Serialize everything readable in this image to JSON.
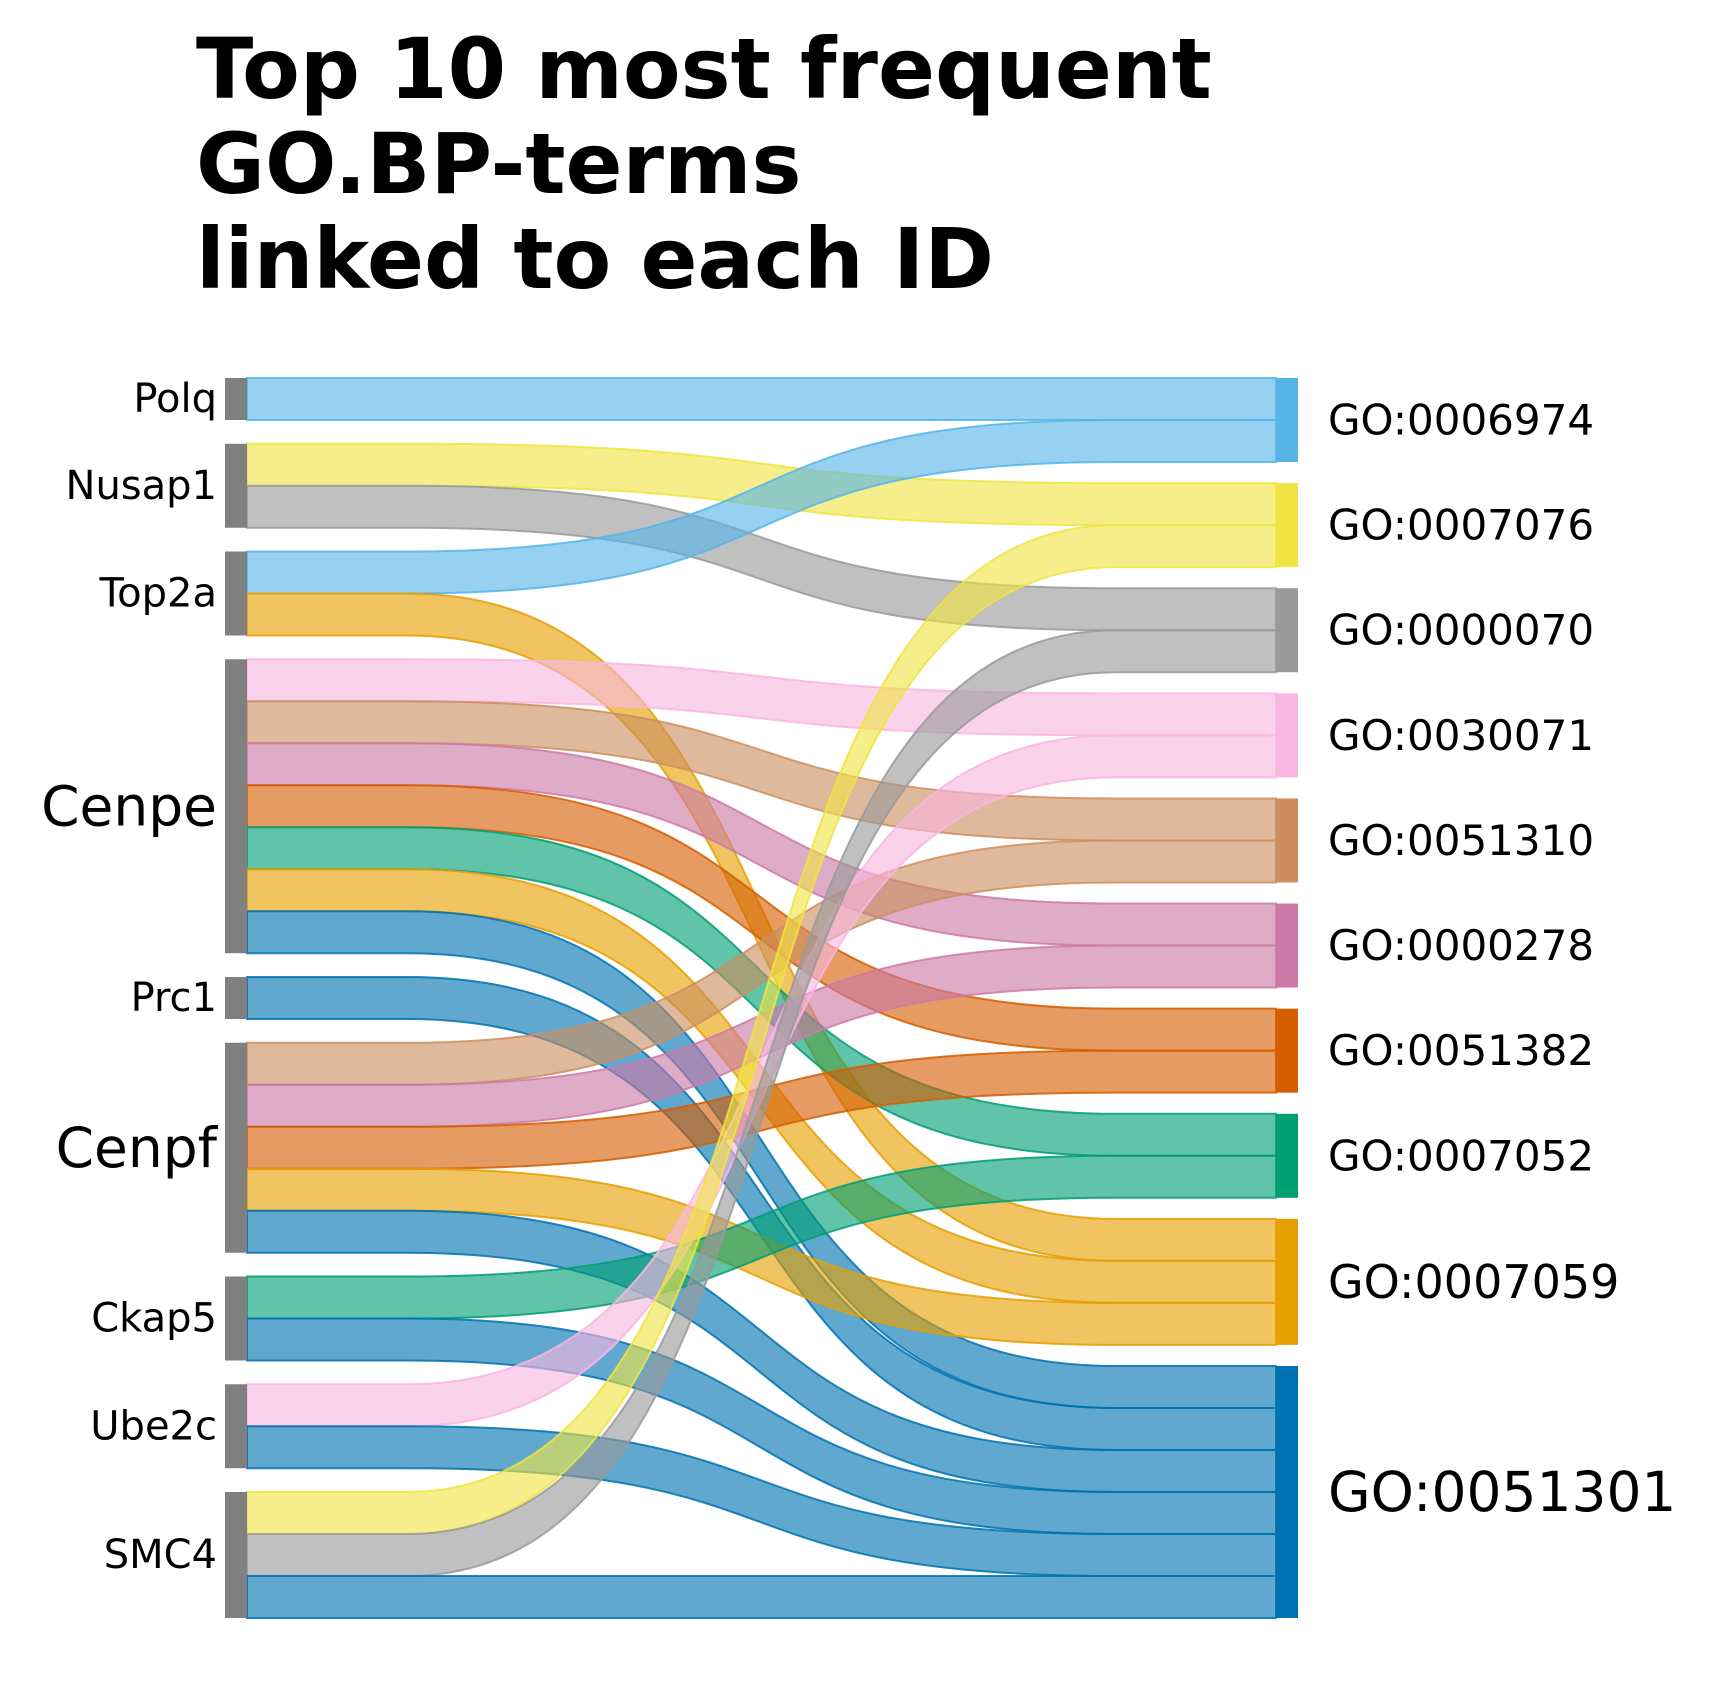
{
  "title_lines": [
    "Top 10 most frequent",
    "GO.BP-terms",
    "linked to each ID"
  ],
  "chart_data": {
    "type": "sankey",
    "title": "Top 10 most frequent GO.BP-terms linked to each ID",
    "sources": [
      "Polq",
      "Nusap1",
      "Top2a",
      "Cenpe",
      "Prc1",
      "Cenpf",
      "Ckap5",
      "Ube2c",
      "SMC4"
    ],
    "targets": [
      "GO:0006974",
      "GO:0007076",
      "GO:0000070",
      "GO:0030071",
      "GO:0051310",
      "GO:0000278",
      "GO:0051382",
      "GO:0007052",
      "GO:0007059",
      "GO:0051301"
    ],
    "target_colors": {
      "GO:0006974": "#56b4e9",
      "GO:0007076": "#f0e442",
      "GO:0000070": "#999999",
      "GO:0030071": "#f9b6e0",
      "GO:0051310": "#cc8e5f",
      "GO:0000278": "#cc79a7",
      "GO:0051382": "#d55e00",
      "GO:0007052": "#009e73",
      "GO:0007059": "#e69f00",
      "GO:0051301": "#0072b2"
    },
    "source_node_color": "#808080",
    "links": [
      {
        "source": "Polq",
        "target": "GO:0006974",
        "value": 1
      },
      {
        "source": "Nusap1",
        "target": "GO:0007076",
        "value": 1
      },
      {
        "source": "Nusap1",
        "target": "GO:0000070",
        "value": 1
      },
      {
        "source": "Top2a",
        "target": "GO:0006974",
        "value": 1
      },
      {
        "source": "Top2a",
        "target": "GO:0007059",
        "value": 1
      },
      {
        "source": "Cenpe",
        "target": "GO:0030071",
        "value": 1
      },
      {
        "source": "Cenpe",
        "target": "GO:0051310",
        "value": 1
      },
      {
        "source": "Cenpe",
        "target": "GO:0000278",
        "value": 1
      },
      {
        "source": "Cenpe",
        "target": "GO:0051382",
        "value": 1
      },
      {
        "source": "Cenpe",
        "target": "GO:0007052",
        "value": 1
      },
      {
        "source": "Cenpe",
        "target": "GO:0007059",
        "value": 1
      },
      {
        "source": "Cenpe",
        "target": "GO:0051301",
        "value": 1
      },
      {
        "source": "Prc1",
        "target": "GO:0051301",
        "value": 1
      },
      {
        "source": "Cenpf",
        "target": "GO:0051310",
        "value": 1
      },
      {
        "source": "Cenpf",
        "target": "GO:0000278",
        "value": 1
      },
      {
        "source": "Cenpf",
        "target": "GO:0051382",
        "value": 1
      },
      {
        "source": "Cenpf",
        "target": "GO:0007059",
        "value": 1
      },
      {
        "source": "Cenpf",
        "target": "GO:0051301",
        "value": 1
      },
      {
        "source": "Ckap5",
        "target": "GO:0007052",
        "value": 1
      },
      {
        "source": "Ckap5",
        "target": "GO:0051301",
        "value": 1
      },
      {
        "source": "Ube2c",
        "target": "GO:0030071",
        "value": 1
      },
      {
        "source": "Ube2c",
        "target": "GO:0051301",
        "value": 1
      },
      {
        "source": "SMC4",
        "target": "GO:0007076",
        "value": 1
      },
      {
        "source": "SMC4",
        "target": "GO:0000070",
        "value": 1
      },
      {
        "source": "SMC4",
        "target": "GO:0051301",
        "value": 1
      }
    ]
  }
}
